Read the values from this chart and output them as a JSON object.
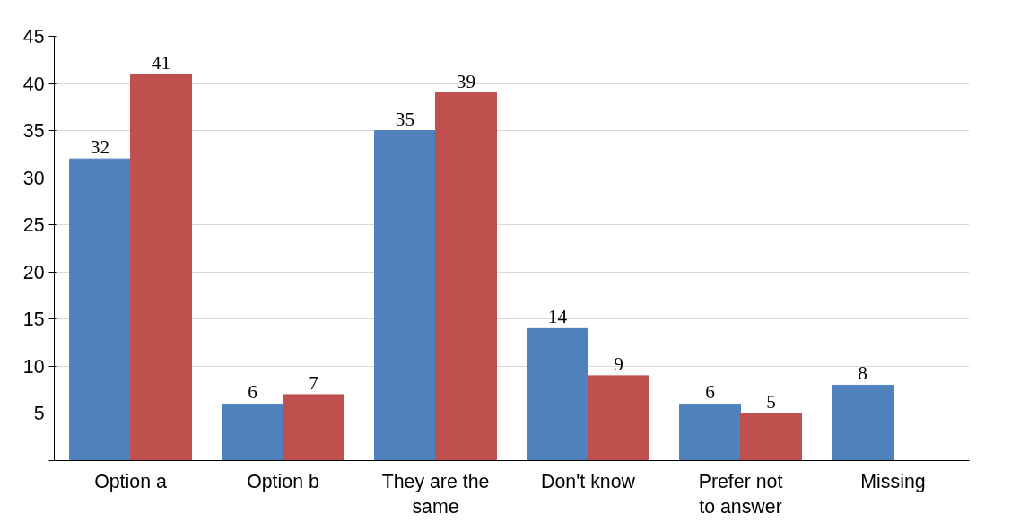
{
  "chart_data": {
    "type": "bar",
    "categories": [
      "Option a",
      "Option b",
      "They are the same",
      "Don't know",
      "Prefer not to answer",
      "Missing"
    ],
    "series": [
      {
        "color": "#4f81bd",
        "values": [
          32,
          6,
          35,
          14,
          6,
          8
        ]
      },
      {
        "color": "#c0504d",
        "values": [
          41,
          7,
          39,
          9,
          5,
          null
        ]
      }
    ],
    "ylim": [
      0,
      45
    ],
    "yticks": [
      {
        "value": 0,
        "label": null
      },
      5,
      10,
      15,
      20,
      25,
      30,
      35,
      40,
      45
    ],
    "grid": "y",
    "data_labels": true
  }
}
